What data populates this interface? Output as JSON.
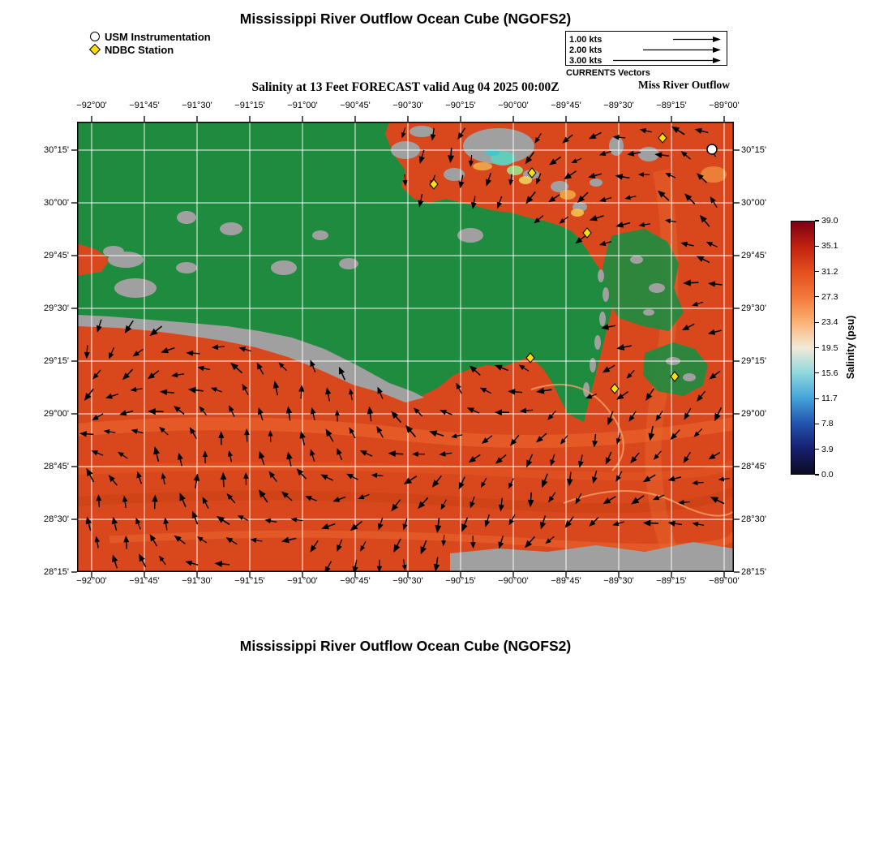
{
  "title": "Mississippi River Outflow Ocean Cube (NGOFS2)",
  "bottom_title": "Mississippi River Outflow Ocean Cube (NGOFS2)",
  "subtitle": "Salinity at 13 Feet FORECAST valid Aug 04 2025 00:00Z",
  "marker_legend": {
    "usm": "USM Instrumentation",
    "ndbc": "NDBC Station"
  },
  "vector_legend": {
    "rows": [
      {
        "label": "1.00 kts",
        "len": 58
      },
      {
        "label": "2.00 kts",
        "len": 95
      },
      {
        "label": "3.00 kts",
        "len": 132
      }
    ],
    "caption": "CURRENTS Vectors",
    "region_label": "Miss River Outflow"
  },
  "axes": {
    "lon_labels": [
      "−92°00'",
      "−91°45'",
      "−91°30'",
      "−91°15'",
      "−91°00'",
      "−90°45'",
      "−90°30'",
      "−90°15'",
      "−90°00'",
      "−89°45'",
      "−89°30'",
      "−89°15'",
      "−89°00'"
    ],
    "lat_labels": [
      "30°15'",
      "30°00'",
      "29°45'",
      "29°30'",
      "29°15'",
      "29°00'",
      "28°45'",
      "28°30'",
      "28°15'"
    ]
  },
  "colorbar": {
    "label": "Salinity (psu)",
    "ticks": [
      "39.0",
      "35.1",
      "31.2",
      "27.3",
      "23.4",
      "19.5",
      "15.6",
      "11.7",
      "7.8",
      "3.9",
      "0.0"
    ],
    "stops": [
      "#7a0013",
      "#c22110",
      "#e34f1e",
      "#f3793a",
      "#fbb375",
      "#f2ead8",
      "#8fd9dd",
      "#44a3d9",
      "#2153ae",
      "#171f6e",
      "#0c0c22"
    ]
  },
  "map": {
    "colors": {
      "land_green": "#1f8b3f",
      "water": "#d9481d",
      "land_gray": "#a0a0a0",
      "grid": "#ffffff",
      "vector": "#000000",
      "station_fill": "#ffdf00"
    },
    "ndbc_stations": [
      [
        440,
        77
      ],
      [
        722,
        20
      ],
      [
        561,
        63
      ],
      [
        629,
        137
      ],
      [
        559,
        291
      ],
      [
        663,
        329
      ],
      [
        737,
        314
      ]
    ],
    "usm_stations": [
      [
        783,
        34
      ]
    ]
  },
  "chart_data": {
    "type": "heatmap",
    "title": "Salinity at 13 Feet FORECAST valid Aug 04 2025 00:00Z",
    "x_ticks": [
      "−92°00'",
      "−91°45'",
      "−91°30'",
      "−91°15'",
      "−91°00'",
      "−90°45'",
      "−90°30'",
      "−90°15'",
      "−90°00'",
      "−89°45'",
      "−89°30'",
      "−89°15'",
      "−89°00'"
    ],
    "y_ticks": [
      "30°15'",
      "30°00'",
      "29°45'",
      "29°30'",
      "29°15'",
      "29°00'",
      "28°45'",
      "28°30'",
      "28°15'"
    ],
    "colorbar_ticks": [
      39.0,
      35.1,
      31.2,
      27.3,
      23.4,
      19.5,
      15.6,
      11.7,
      7.8,
      3.9,
      0.0
    ],
    "colorbar_label": "Salinity (psu)",
    "value_range": [
      0,
      39
    ],
    "field_notes": "open gulf water shaded orange-red (~31-35 psu), model land mask green, masked land gray, black current vectors over water"
  }
}
